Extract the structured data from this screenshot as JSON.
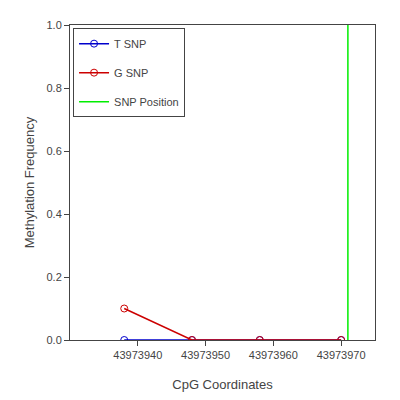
{
  "chart_data": {
    "type": "line",
    "xlabel": "CpG Coordinates",
    "ylabel": "Methylation Frequency",
    "x": [
      43973938,
      43973948,
      43973958,
      43973970
    ],
    "series": [
      {
        "name": "T SNP",
        "color": "#0000cc",
        "marker": "circle",
        "values": [
          0.0,
          0.0,
          0.0,
          0.0
        ]
      },
      {
        "name": "G SNP",
        "color": "#cc0000",
        "marker": "circle",
        "values": [
          0.1,
          0.0,
          0.0,
          0.0
        ]
      },
      {
        "name": "SNP Position",
        "type": "vline",
        "color": "#00ee00",
        "x": [
          43973971
        ]
      }
    ],
    "xlim": [
      43973930,
      43973975
    ],
    "xticks": [
      43973940,
      43973950,
      43973960,
      43973970
    ],
    "ylim": [
      0.0,
      1.0
    ],
    "yticks": [
      {
        "value": 0.0,
        "label": "0.0"
      },
      0.2,
      0.4,
      0.6,
      0.8,
      {
        "value": 1.0,
        "label": "1.0"
      }
    ],
    "grid": false,
    "legend": "upper left"
  }
}
